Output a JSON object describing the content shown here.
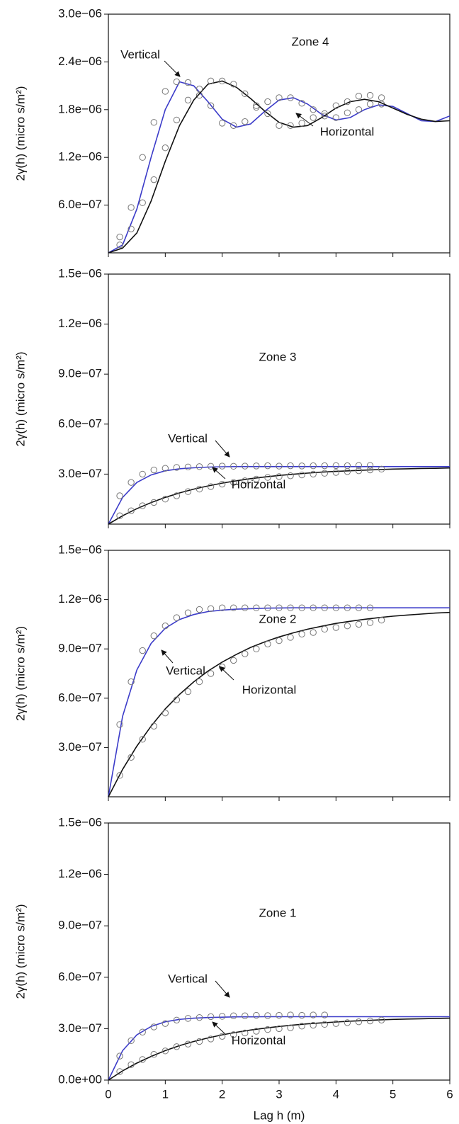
{
  "chart_data": [
    {
      "type": "line",
      "title": "Zone 4",
      "ylabel": "2γ(h) (micro s/m²)",
      "xlim": [
        0,
        6
      ],
      "xticks": [
        0,
        1,
        2,
        3,
        4,
        5,
        6
      ],
      "ylim": [
        0,
        3e-06
      ],
      "yticks": [
        {
          "value": 6e-07,
          "label": "6.0e−07"
        },
        {
          "value": 1.2e-06,
          "label": "1.2e−06"
        },
        {
          "value": 1.8e-06,
          "label": "1.8e−06"
        },
        {
          "value": 2.4e-06,
          "label": "2.4e−06"
        },
        {
          "value": 3e-06,
          "label": "3.0e−06"
        }
      ],
      "x": [
        0,
        0.25,
        0.5,
        0.75,
        1,
        1.25,
        1.5,
        1.75,
        2,
        2.25,
        2.5,
        2.75,
        3,
        3.25,
        3.5,
        3.75,
        4,
        4.25,
        4.5,
        4.75,
        5,
        5.25,
        5.5,
        5.75,
        6
      ],
      "series": [
        {
          "name": "Vertical",
          "color": "#3b3bc9",
          "values": [
            0,
            1e-07,
            5.5e-07,
            1.2e-06,
            1.8e-06,
            2.15e-06,
            2.1e-06,
            1.9e-06,
            1.68e-06,
            1.58e-06,
            1.62e-06,
            1.78e-06,
            1.92e-06,
            1.95e-06,
            1.87e-06,
            1.74e-06,
            1.67e-06,
            1.7e-06,
            1.8e-06,
            1.86e-06,
            1.84e-06,
            1.75e-06,
            1.66e-06,
            1.65e-06,
            1.72e-06
          ],
          "points_x": [
            0.2,
            0.4,
            0.6,
            0.8,
            1,
            1.2,
            1.4,
            1.6,
            1.8,
            2,
            2.2,
            2.4,
            2.6,
            2.8,
            3,
            3.2,
            3.4,
            3.6,
            3.8,
            4,
            4.2,
            4.4,
            4.6,
            4.8
          ],
          "points": [
            2e-07,
            5.7e-07,
            1.2e-06,
            1.64e-06,
            2.03e-06,
            2.15e-06,
            2.14e-06,
            1.98e-06,
            1.85e-06,
            1.63e-06,
            1.6e-06,
            1.65e-06,
            1.83e-06,
            1.9e-06,
            1.95e-06,
            1.95e-06,
            1.88e-06,
            1.8e-06,
            1.72e-06,
            1.7e-06,
            1.76e-06,
            1.8e-06,
            1.87e-06,
            1.87e-06
          ]
        },
        {
          "name": "Horizontal",
          "color": "#111111",
          "values": [
            0,
            6e-08,
            2.5e-07,
            6.5e-07,
            1.15e-06,
            1.6e-06,
            1.92e-06,
            2.12e-06,
            2.16e-06,
            2.08e-06,
            1.94e-06,
            1.78e-06,
            1.64e-06,
            1.58e-06,
            1.6e-06,
            1.7e-06,
            1.82e-06,
            1.9e-06,
            1.93e-06,
            1.9e-06,
            1.82e-06,
            1.74e-06,
            1.68e-06,
            1.65e-06,
            1.66e-06
          ],
          "points_x": [
            0.2,
            0.4,
            0.6,
            0.8,
            1,
            1.2,
            1.4,
            1.6,
            1.8,
            2,
            2.2,
            2.4,
            2.6,
            2.8,
            3,
            3.2,
            3.4,
            3.6,
            3.8,
            4,
            4.2,
            4.4,
            4.6,
            4.8
          ],
          "points": [
            1e-07,
            3e-07,
            6.3e-07,
            9.2e-07,
            1.32e-06,
            1.67e-06,
            1.92e-06,
            2.06e-06,
            2.16e-06,
            2.16e-06,
            2.12e-06,
            2e-06,
            1.85e-06,
            1.75e-06,
            1.6e-06,
            1.6e-06,
            1.63e-06,
            1.7e-06,
            1.75e-06,
            1.85e-06,
            1.9e-06,
            1.97e-06,
            1.98e-06,
            1.95e-06
          ]
        }
      ]
    },
    {
      "type": "line",
      "title": "Zone 3",
      "ylabel": "2γ(h) (micro s/m²)",
      "xlim": [
        0,
        6
      ],
      "xticks": [
        0,
        1,
        2,
        3,
        4,
        5,
        6
      ],
      "ylim": [
        0,
        1.5e-06
      ],
      "yticks": [
        {
          "value": 3e-07,
          "label": "3.0e−07"
        },
        {
          "value": 6e-07,
          "label": "6.0e−07"
        },
        {
          "value": 9e-07,
          "label": "9.0e−07"
        },
        {
          "value": 1.2e-06,
          "label": "1.2e−06"
        },
        {
          "value": 1.5e-06,
          "label": "1.5e−06"
        }
      ],
      "x": [
        0,
        0.25,
        0.5,
        0.75,
        1,
        1.25,
        1.5,
        1.75,
        2,
        2.25,
        2.5,
        2.75,
        3,
        3.25,
        3.5,
        3.75,
        4,
        4.25,
        4.5,
        4.75,
        5,
        5.25,
        5.5,
        5.75,
        6
      ],
      "series": [
        {
          "name": "Vertical",
          "color": "#3b3bc9",
          "values": [
            0,
            1.6e-07,
            2.5e-07,
            2.95e-07,
            3.2e-07,
            3.32e-07,
            3.38e-07,
            3.42e-07,
            3.44e-07,
            3.45e-07,
            3.45e-07,
            3.45e-07,
            3.45e-07,
            3.45e-07,
            3.45e-07,
            3.45e-07,
            3.45e-07,
            3.45e-07,
            3.45e-07,
            3.45e-07,
            3.45e-07,
            3.45e-07,
            3.45e-07,
            3.45e-07,
            3.45e-07
          ],
          "points_x": [
            0.2,
            0.4,
            0.6,
            0.8,
            1,
            1.2,
            1.4,
            1.6,
            1.8,
            2,
            2.2,
            2.4,
            2.6,
            2.8,
            3,
            3.2,
            3.4,
            3.6,
            3.8,
            4,
            4.2,
            4.4,
            4.6
          ],
          "points": [
            1.7e-07,
            2.5e-07,
            3e-07,
            3.25e-07,
            3.35e-07,
            3.4e-07,
            3.43e-07,
            3.45e-07,
            3.47e-07,
            3.48e-07,
            3.47e-07,
            3.48e-07,
            3.49e-07,
            3.5e-07,
            3.48e-07,
            3.5e-07,
            3.49e-07,
            3.5e-07,
            3.5e-07,
            3.51e-07,
            3.5e-07,
            3.52e-07,
            3.52e-07
          ]
        },
        {
          "name": "Horizontal",
          "color": "#111111",
          "values": [
            0,
            5e-08,
            9.25e-08,
            1.29e-07,
            1.6e-07,
            1.87e-07,
            2.1e-07,
            2.29e-07,
            2.46e-07,
            2.6e-07,
            2.73e-07,
            2.83e-07,
            2.92e-07,
            2.99e-07,
            3.06e-07,
            3.12e-07,
            3.16e-07,
            3.2e-07,
            3.24e-07,
            3.27e-07,
            3.3e-07,
            3.32e-07,
            3.34e-07,
            3.35e-07,
            3.37e-07
          ],
          "points_x": [
            0.2,
            0.4,
            0.6,
            0.8,
            1,
            1.2,
            1.4,
            1.6,
            1.8,
            2,
            2.2,
            2.4,
            2.6,
            2.8,
            3,
            3.2,
            3.4,
            3.6,
            3.8,
            4,
            4.2,
            4.4,
            4.6,
            4.8
          ],
          "points": [
            5e-08,
            8e-08,
            1.1e-07,
            1.3e-07,
            1.5e-07,
            1.7e-07,
            1.95e-07,
            2.1e-07,
            2.25e-07,
            2.4e-07,
            2.5e-07,
            2.6e-07,
            2.7e-07,
            2.8e-07,
            2.85e-07,
            2.9e-07,
            2.95e-07,
            3e-07,
            3.05e-07,
            3.1e-07,
            3.15e-07,
            3.2e-07,
            3.25e-07,
            3.3e-07
          ]
        }
      ]
    },
    {
      "type": "line",
      "title": "Zone 2",
      "ylabel": "2γ(h) (micro s/m²)",
      "xlim": [
        0,
        6
      ],
      "xticks": [
        0,
        1,
        2,
        3,
        4,
        5,
        6
      ],
      "ylim": [
        0,
        1.5e-06
      ],
      "yticks": [
        {
          "value": 3e-07,
          "label": "3.0e−07"
        },
        {
          "value": 6e-07,
          "label": "6.0e−07"
        },
        {
          "value": 9e-07,
          "label": "9.0e−07"
        },
        {
          "value": 1.2e-06,
          "label": "1.2e−06"
        },
        {
          "value": 1.5e-06,
          "label": "1.5e−06"
        }
      ],
      "x": [
        0,
        0.25,
        0.5,
        0.75,
        1,
        1.25,
        1.5,
        1.75,
        2,
        2.25,
        2.5,
        2.75,
        3,
        3.25,
        3.5,
        3.75,
        4,
        4.25,
        4.5,
        4.75,
        5,
        5.25,
        5.5,
        5.75,
        6
      ],
      "series": [
        {
          "name": "Vertical",
          "color": "#3b3bc9",
          "values": [
            0,
            4.9e-07,
            7.72e-07,
            9.33e-07,
            1.026e-06,
            1.079e-06,
            1.109e-06,
            1.127e-06,
            1.136e-06,
            1.142e-06,
            1.145e-06,
            1.148e-06,
            1.149e-06,
            1.15e-06,
            1.15e-06,
            1.15e-06,
            1.15e-06,
            1.15e-06,
            1.15e-06,
            1.15e-06,
            1.15e-06,
            1.15e-06,
            1.15e-06,
            1.15e-06,
            1.15e-06
          ],
          "points_x": [
            0.2,
            0.4,
            0.6,
            0.8,
            1,
            1.2,
            1.4,
            1.6,
            1.8,
            2,
            2.2,
            2.4,
            2.6,
            2.8,
            3,
            3.2,
            3.4,
            3.6,
            3.8,
            4,
            4.2,
            4.4,
            4.6
          ],
          "points": [
            4.4e-07,
            7e-07,
            8.9e-07,
            9.8e-07,
            1.04e-06,
            1.09e-06,
            1.12e-06,
            1.14e-06,
            1.145e-06,
            1.15e-06,
            1.15e-06,
            1.15e-06,
            1.15e-06,
            1.15e-06,
            1.15e-06,
            1.15e-06,
            1.15e-06,
            1.15e-06,
            1.15e-06,
            1.15e-06,
            1.15e-06,
            1.15e-06,
            1.15e-06
          ]
        },
        {
          "name": "Horizontal",
          "color": "#111111",
          "values": [
            0,
            1.67e-07,
            3.08e-07,
            4.3e-07,
            5.35e-07,
            6.23e-07,
            6.99e-07,
            7.65e-07,
            8.2e-07,
            8.67e-07,
            9.09e-07,
            9.43e-07,
            9.73e-07,
            9.98e-07,
            1.02e-06,
            1.038e-06,
            1.055e-06,
            1.068e-06,
            1.08e-06,
            1.09e-06,
            1.099e-06,
            1.106e-06,
            1.112e-06,
            1.118e-06,
            1.122e-06
          ],
          "points_x": [
            0.2,
            0.4,
            0.6,
            0.8,
            1,
            1.2,
            1.4,
            1.6,
            1.8,
            2,
            2.2,
            2.4,
            2.6,
            2.8,
            3,
            3.2,
            3.4,
            3.6,
            3.8,
            4,
            4.2,
            4.4,
            4.6,
            4.8
          ],
          "points": [
            1.3e-07,
            2.4e-07,
            3.5e-07,
            4.3e-07,
            5.1e-07,
            5.9e-07,
            6.4e-07,
            7e-07,
            7.5e-07,
            7.9e-07,
            8.3e-07,
            8.7e-07,
            9e-07,
            9.3e-07,
            9.5e-07,
            9.7e-07,
            9.9e-07,
            1e-06,
            1.02e-06,
            1.03e-06,
            1.04e-06,
            1.05e-06,
            1.06e-06,
            1.075e-06
          ]
        }
      ]
    },
    {
      "type": "line",
      "title": "Zone 1",
      "ylabel": "2γ(h) (micro s/m²)",
      "xlabel": "Lag h (m)",
      "xlim": [
        0,
        6
      ],
      "xticks": [
        0,
        1,
        2,
        3,
        4,
        5,
        6
      ],
      "ylim": [
        0,
        1.5e-06
      ],
      "yticks": [
        {
          "value": 0,
          "label": "0.0e+00"
        },
        {
          "value": 3e-07,
          "label": "3.0e−07"
        },
        {
          "value": 6e-07,
          "label": "6.0e−07"
        },
        {
          "value": 9e-07,
          "label": "9.0e−07"
        },
        {
          "value": 1.2e-06,
          "label": "1.2e−06"
        },
        {
          "value": 1.5e-06,
          "label": "1.5e−06"
        }
      ],
      "x": [
        0,
        0.25,
        0.5,
        0.75,
        1,
        1.25,
        1.5,
        1.75,
        2,
        2.25,
        2.5,
        2.75,
        3,
        3.25,
        3.5,
        3.75,
        4,
        4.25,
        4.5,
        4.75,
        5,
        5.25,
        5.5,
        5.75,
        6
      ],
      "series": [
        {
          "name": "Vertical",
          "color": "#3b3bc9",
          "values": [
            0,
            1.72e-07,
            2.64e-07,
            3.13e-07,
            3.4e-07,
            3.54e-07,
            3.61e-07,
            3.65e-07,
            3.67e-07,
            3.69e-07,
            3.69e-07,
            3.7e-07,
            3.7e-07,
            3.7e-07,
            3.7e-07,
            3.7e-07,
            3.7e-07,
            3.7e-07,
            3.7e-07,
            3.7e-07,
            3.7e-07,
            3.7e-07,
            3.7e-07,
            3.7e-07,
            3.7e-07
          ],
          "points_x": [
            0.2,
            0.4,
            0.6,
            0.8,
            1,
            1.2,
            1.4,
            1.6,
            1.8,
            2,
            2.2,
            2.4,
            2.6,
            2.8,
            3,
            3.2,
            3.4,
            3.6,
            3.8
          ],
          "points": [
            1.4e-07,
            2.3e-07,
            2.8e-07,
            3.1e-07,
            3.3e-07,
            3.5e-07,
            3.6e-07,
            3.65e-07,
            3.7e-07,
            3.72e-07,
            3.75e-07,
            3.75e-07,
            3.78e-07,
            3.76e-07,
            3.78e-07,
            3.8e-07,
            3.78e-07,
            3.8e-07,
            3.8e-07
          ]
        },
        {
          "name": "Horizontal",
          "color": "#111111",
          "values": [
            0,
            5.4e-08,
            9.9e-08,
            1.38e-07,
            1.72e-07,
            2.01e-07,
            2.25e-07,
            2.46e-07,
            2.64e-07,
            2.79e-07,
            2.92e-07,
            3.03e-07,
            3.13e-07,
            3.21e-07,
            3.28e-07,
            3.34e-07,
            3.39e-07,
            3.44e-07,
            3.47e-07,
            3.51e-07,
            3.54e-07,
            3.56e-07,
            3.58e-07,
            3.6e-07,
            3.61e-07
          ],
          "points_x": [
            0.2,
            0.4,
            0.6,
            0.8,
            1,
            1.2,
            1.4,
            1.6,
            1.8,
            2,
            2.2,
            2.4,
            2.6,
            2.8,
            3,
            3.2,
            3.4,
            3.6,
            3.8,
            4,
            4.2,
            4.4,
            4.6,
            4.8
          ],
          "points": [
            5e-08,
            9e-08,
            1.2e-07,
            1.5e-07,
            1.7e-07,
            1.95e-07,
            2.1e-07,
            2.25e-07,
            2.4e-07,
            2.55e-07,
            2.65e-07,
            2.75e-07,
            2.85e-07,
            2.95e-07,
            3e-07,
            3.05e-07,
            3.15e-07,
            3.2e-07,
            3.25e-07,
            3.3e-07,
            3.35e-07,
            3.4e-07,
            3.45e-07,
            3.5e-07
          ]
        }
      ]
    }
  ]
}
